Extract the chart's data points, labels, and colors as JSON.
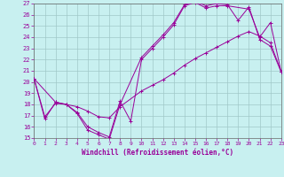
{
  "xlabel": "Windchill (Refroidissement éolien,°C)",
  "xlim": [
    0,
    23
  ],
  "ylim": [
    15,
    27
  ],
  "xticks": [
    0,
    1,
    2,
    3,
    4,
    5,
    6,
    7,
    8,
    9,
    10,
    11,
    12,
    13,
    14,
    15,
    16,
    17,
    18,
    19,
    20,
    21,
    22,
    23
  ],
  "yticks": [
    15,
    16,
    17,
    18,
    19,
    20,
    21,
    22,
    23,
    24,
    25,
    26,
    27
  ],
  "bg_color": "#c8f0f0",
  "grid_color": "#a0c8c8",
  "line_color": "#990099",
  "curves": [
    {
      "x": [
        0,
        1,
        2,
        3,
        4,
        5,
        6,
        7,
        8,
        10,
        11,
        12,
        13,
        14,
        15,
        16,
        17,
        18,
        19,
        20,
        21,
        22,
        23
      ],
      "y": [
        20.3,
        16.7,
        18.2,
        18.0,
        17.2,
        15.7,
        15.3,
        14.9,
        18.0,
        22.2,
        23.2,
        24.2,
        25.3,
        26.9,
        27.2,
        26.8,
        27.0,
        26.9,
        25.5,
        26.7,
        23.8,
        23.2,
        20.9
      ]
    },
    {
      "x": [
        0,
        2,
        3,
        4,
        5,
        6,
        7,
        8,
        10,
        11,
        12,
        13,
        14,
        15,
        16,
        17,
        18,
        19,
        20,
        21,
        22,
        23
      ],
      "y": [
        20.3,
        18.2,
        18.0,
        17.8,
        17.4,
        16.9,
        16.8,
        17.8,
        19.2,
        19.7,
        20.2,
        20.8,
        21.5,
        22.1,
        22.6,
        23.1,
        23.6,
        24.1,
        24.5,
        24.1,
        23.5,
        20.9
      ]
    },
    {
      "x": [
        0,
        1,
        2,
        3,
        4,
        5,
        6,
        7,
        8,
        9,
        10,
        11,
        12,
        13,
        14,
        15,
        16,
        17,
        18,
        20,
        21,
        22,
        23
      ],
      "y": [
        20.3,
        16.9,
        18.1,
        18.0,
        17.3,
        16.0,
        15.5,
        15.1,
        18.3,
        16.5,
        22.0,
        23.0,
        24.0,
        25.1,
        26.8,
        27.1,
        26.6,
        26.8,
        26.8,
        26.5,
        24.0,
        25.3,
        20.9
      ]
    }
  ]
}
